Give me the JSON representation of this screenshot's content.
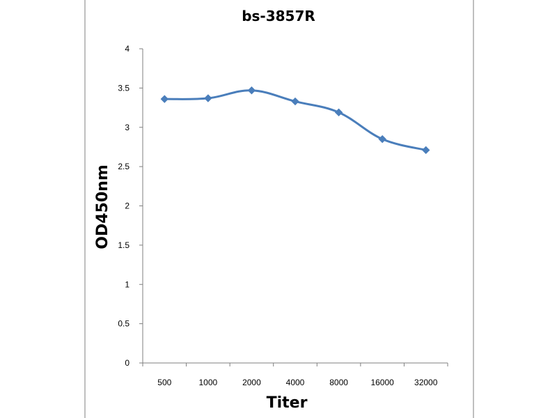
{
  "chart_data": {
    "type": "line",
    "title": "bs-3857R",
    "xlabel": "Titer",
    "ylabel": "OD450nm",
    "categories": [
      "500",
      "1000",
      "2000",
      "4000",
      "8000",
      "16000",
      "32000"
    ],
    "series": [
      {
        "values": [
          3.36,
          3.37,
          3.47,
          3.33,
          3.19,
          2.85,
          2.71
        ]
      }
    ],
    "y_ticks": [
      "0",
      "0.5",
      "1",
      "1.5",
      "2",
      "2.5",
      "3",
      "3.5",
      "4"
    ],
    "ylim": [
      0,
      4
    ],
    "grid": false,
    "legend": "none",
    "line_color": "#4a7ebb"
  }
}
